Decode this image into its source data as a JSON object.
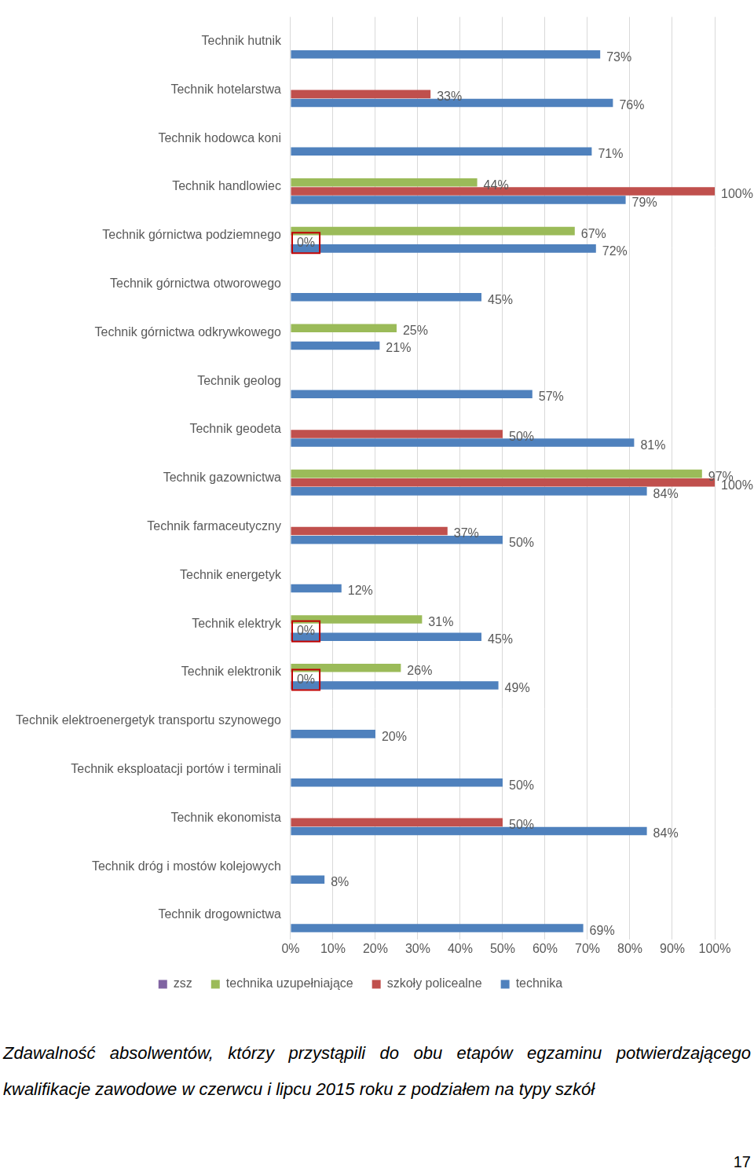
{
  "chart_data": {
    "type": "bar",
    "orientation": "horizontal",
    "grid": true,
    "legend": "bottom",
    "data_labels": true,
    "categories": [
      "Technik hutnik",
      "Technik hotelarstwa",
      "Technik hodowca koni",
      "Technik handlowiec",
      "Technik górnictwa podziemnego",
      "Technik górnictwa otworowego",
      "Technik górnictwa odkrywkowego",
      "Technik geolog",
      "Technik geodeta",
      "Technik gazownictwa",
      "Technik farmaceutyczny",
      "Technik energetyk",
      "Technik elektryk",
      "Technik elektronik",
      "Technik elektroenergetyk transportu szynowego",
      "Technik eksploatacji portów i terminali",
      "Technik ekonomista",
      "Technik dróg i mostów kolejowych",
      "Technik drogownictwa"
    ],
    "series": [
      {
        "name": "zsz",
        "color": "#8064a2",
        "values": [
          null,
          null,
          null,
          null,
          null,
          null,
          null,
          null,
          null,
          null,
          null,
          null,
          null,
          null,
          null,
          null,
          null,
          null,
          null
        ],
        "value_labels": [
          null,
          null,
          null,
          null,
          null,
          null,
          null,
          null,
          null,
          null,
          null,
          null,
          null,
          null,
          null,
          null,
          null,
          null,
          null
        ]
      },
      {
        "name": "technika uzupełniające",
        "color": "#9bbb59",
        "values": [
          null,
          null,
          null,
          44,
          67,
          null,
          25,
          null,
          null,
          97,
          null,
          null,
          31,
          26,
          null,
          null,
          null,
          null,
          null
        ],
        "value_labels": [
          null,
          null,
          null,
          "44%",
          "67%",
          null,
          "25%",
          null,
          null,
          "97%",
          null,
          null,
          "31%",
          "26%",
          null,
          null,
          null,
          null,
          null
        ]
      },
      {
        "name": "szkoły policealne",
        "color": "#c0504d",
        "values": [
          null,
          33,
          null,
          100,
          0,
          null,
          null,
          null,
          50,
          100,
          37,
          null,
          0,
          0,
          null,
          null,
          50,
          null,
          null
        ],
        "value_labels": [
          null,
          "33%",
          null,
          "100%",
          "0%",
          null,
          null,
          null,
          "50%",
          "100%",
          "37%",
          null,
          "0%",
          "0%",
          null,
          null,
          "50%",
          null,
          null
        ]
      },
      {
        "name": "technika",
        "color": "#4f81bd",
        "values": [
          73,
          76,
          71,
          79,
          72,
          45,
          21,
          57,
          81,
          84,
          50,
          12,
          45,
          49,
          20,
          50,
          84,
          8,
          69
        ],
        "value_labels": [
          "73%",
          "76%",
          "71%",
          "79%",
          "72%",
          "45%",
          "21%",
          "57%",
          "81%",
          "84%",
          "50%",
          "12%",
          "45%",
          "49%",
          "20%",
          "50%",
          "84%",
          "8%",
          "69%"
        ]
      }
    ],
    "xlim": [
      0,
      100
    ],
    "xticks": [
      {
        "value": 0,
        "label": "0%"
      },
      {
        "value": 10,
        "label": "10%"
      },
      {
        "value": 20,
        "label": "20%"
      },
      {
        "value": 30,
        "label": "30%"
      },
      {
        "value": 40,
        "label": "40%"
      },
      {
        "value": 50,
        "label": "50%"
      },
      {
        "value": 60,
        "label": "60%"
      },
      {
        "value": 70,
        "label": "70%"
      },
      {
        "value": 80,
        "label": "80%"
      },
      {
        "value": 90,
        "label": "90%"
      },
      {
        "value": 100,
        "label": "100%"
      }
    ]
  },
  "caption": "Zdawalność absolwentów, którzy przystąpili do obu etapów egzaminu potwierdzającego kwalifikacje zawodowe w czerwcu i lipcu 2015 roku z podziałem na typy szkół",
  "page_number": 17
}
